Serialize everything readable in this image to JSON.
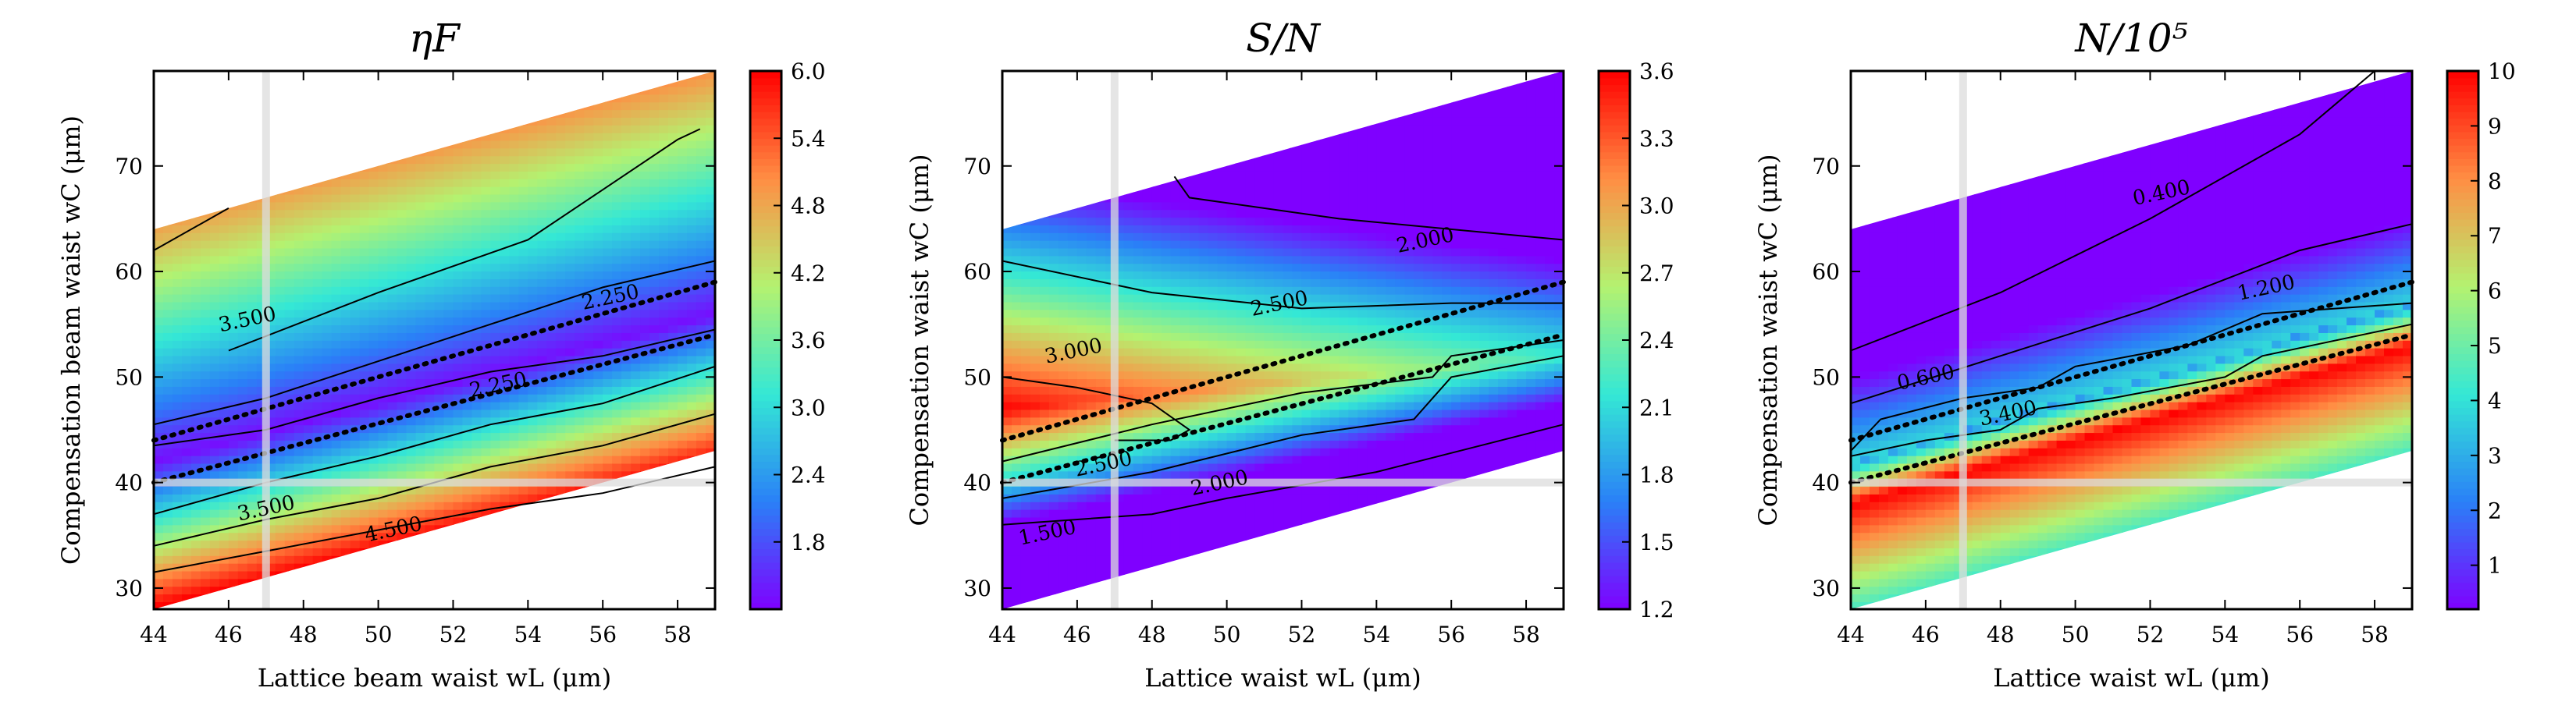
{
  "chart_data": [
    {
      "type": "heatmap",
      "title": "ηF",
      "xlabel": "Lattice beam waist wL (μm)",
      "ylabel": "Compensation beam waist wC (μm)",
      "xlim": [
        44,
        59
      ],
      "ylim": [
        28,
        79
      ],
      "xticks": [
        "44",
        "46",
        "48",
        "50",
        "52",
        "54",
        "56",
        "58"
      ],
      "yticks": [
        "30",
        "40",
        "50",
        "60",
        "70"
      ],
      "colorbar": {
        "min": 1.2,
        "max": 6.0,
        "ticks": [
          "1.8",
          "2.4",
          "3.0",
          "3.6",
          "4.2",
          "4.8",
          "5.4",
          "6.0"
        ],
        "colormap": "rainbow"
      },
      "domain": {
        "lower_edge": [
          [
            44,
            28
          ],
          [
            59,
            43
          ]
        ],
        "upper_edge": [
          [
            44,
            64
          ],
          [
            59,
            79
          ]
        ]
      },
      "field": {
        "valley_line": [
          [
            44,
            42
          ],
          [
            59,
            56
          ]
        ],
        "valley_value": 1.3,
        "upper_slope": 0.16,
        "lower_slope": 0.34
      },
      "guide_lines": {
        "x": 47,
        "y": 40
      },
      "dotted_lines": [
        [
          [
            44,
            40
          ],
          [
            59,
            54
          ]
        ],
        [
          [
            44,
            44
          ],
          [
            59,
            59
          ]
        ]
      ],
      "contour_labels": [
        "3.500",
        "2.250",
        "2.250",
        "3.500",
        "4.500"
      ]
    },
    {
      "type": "heatmap",
      "title": "S/N",
      "xlabel": "Lattice waist wL (μm)",
      "ylabel": "Compensation waist wC (μm)",
      "xlim": [
        44,
        59
      ],
      "ylim": [
        28,
        79
      ],
      "xticks": [
        "44",
        "46",
        "48",
        "50",
        "52",
        "54",
        "56",
        "58"
      ],
      "yticks": [
        "30",
        "40",
        "50",
        "60",
        "70"
      ],
      "colorbar": {
        "min": 1.2,
        "max": 3.6,
        "ticks": [
          "1.2",
          "1.5",
          "1.8",
          "2.1",
          "2.4",
          "2.7",
          "3.0",
          "3.3",
          "3.6"
        ],
        "colormap": "rainbow"
      },
      "domain": {
        "lower_edge": [
          [
            44,
            28
          ],
          [
            59,
            43
          ]
        ],
        "upper_edge": [
          [
            44,
            64
          ],
          [
            59,
            79
          ]
        ]
      },
      "field": {
        "peak_line": [
          [
            44,
            47
          ],
          [
            59,
            52
          ]
        ],
        "peak_value_start": 3.6,
        "peak_value_end": 2.2,
        "upper_slope": 0.11,
        "lower_slope": 0.22
      },
      "guide_lines": {
        "x": 47,
        "y": 40
      },
      "dotted_lines": [
        [
          [
            44,
            40
          ],
          [
            59,
            54
          ]
        ],
        [
          [
            44,
            44
          ],
          [
            59,
            59
          ]
        ]
      ],
      "contour_labels": [
        "2.000",
        "3.000",
        "2.500",
        "2.500",
        "2.000",
        "1.500"
      ]
    },
    {
      "type": "heatmap",
      "title": "N/10⁵",
      "xlabel": "Lattice waist wL (μm)",
      "ylabel": "Compensation waist wC (μm)",
      "xlim": [
        44,
        59
      ],
      "ylim": [
        28,
        79
      ],
      "xticks": [
        "44",
        "46",
        "48",
        "50",
        "52",
        "54",
        "56",
        "58"
      ],
      "yticks": [
        "30",
        "40",
        "50",
        "60",
        "70"
      ],
      "colorbar": {
        "min": 0.2,
        "max": 10,
        "ticks": [
          "1",
          "2",
          "3",
          "4",
          "5",
          "6",
          "7",
          "8",
          "9",
          "10"
        ],
        "colormap": "rainbow"
      },
      "domain": {
        "lower_edge": [
          [
            44,
            28
          ],
          [
            59,
            43
          ]
        ],
        "upper_edge": [
          [
            44,
            64
          ],
          [
            59,
            79
          ]
        ]
      },
      "field": {
        "upper_band": [
          [
            44,
            42
          ],
          [
            59,
            57
          ]
        ],
        "lower_band": [
          [
            44,
            38
          ],
          [
            59,
            53
          ]
        ],
        "max_value": 10,
        "min_value": 0.2
      },
      "guide_lines": {
        "x": 47,
        "y": 40
      },
      "dotted_lines": [
        [
          [
            44,
            40
          ],
          [
            59,
            54
          ]
        ],
        [
          [
            44,
            44
          ],
          [
            59,
            59
          ]
        ]
      ],
      "contour_labels": [
        "0.400",
        "1.200",
        "0.600",
        "3.400"
      ]
    }
  ]
}
